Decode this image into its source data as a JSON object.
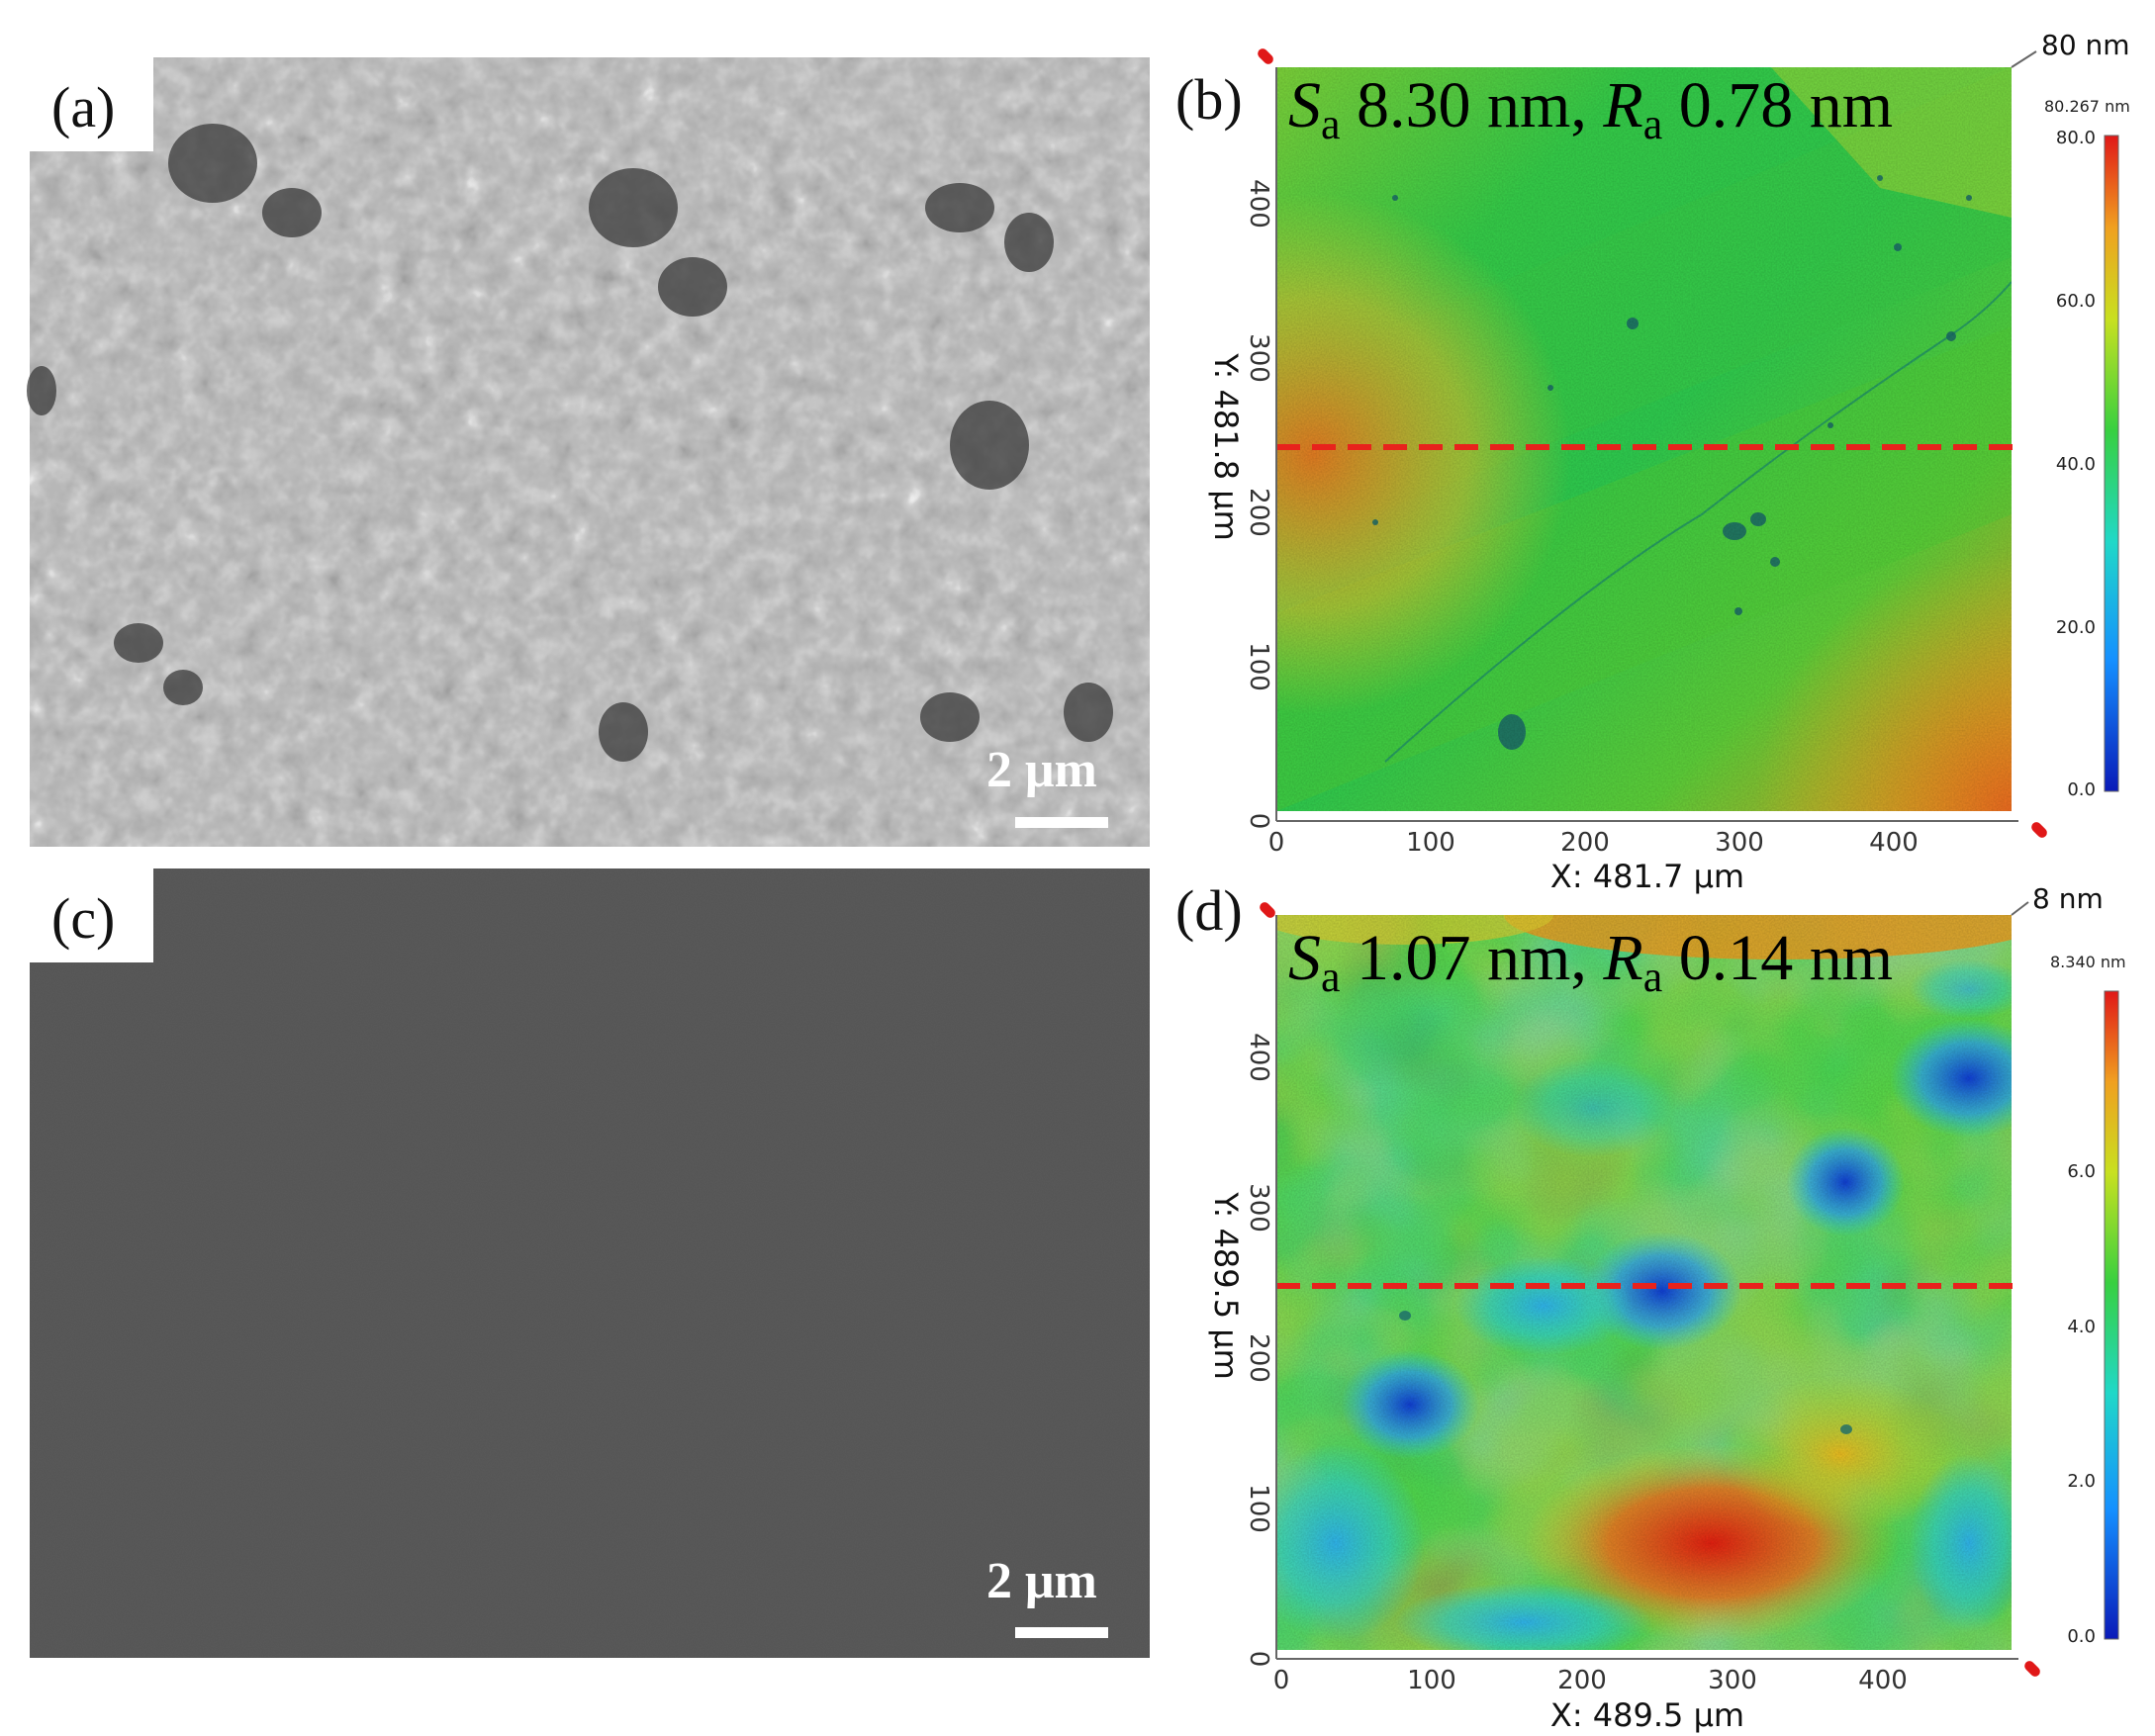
{
  "panels": {
    "a": {
      "label": "(a)",
      "scale_bar": "2 μm"
    },
    "b": {
      "label": "(b)",
      "roughness": {
        "s_symbol": "S",
        "r_symbol": "R",
        "sub": "a",
        "s_text": " 8.30 nm, ",
        "r_text": " 0.78 nm"
      },
      "z_label": "80 nm",
      "colorbar_max_label": "80.267 nm",
      "colorbar_ticks": [
        "80.0",
        "60.0",
        "40.0",
        "20.0",
        "0.0"
      ],
      "x_ticks": [
        "0",
        "100",
        "200",
        "300",
        "400"
      ],
      "y_ticks": [
        "0",
        "100",
        "200",
        "300",
        "400"
      ],
      "x_title": "X: 481.7 μm",
      "y_title": "Y: 481.8 μm",
      "profile_line_color": "#e8221c"
    },
    "c": {
      "label": "(c)",
      "scale_bar": "2 μm"
    },
    "d": {
      "label": "(d)",
      "roughness": {
        "s_symbol": "S",
        "r_symbol": "R",
        "sub": "a",
        "s_text": " 1.07 nm, ",
        "r_text": " 0.14 nm"
      },
      "z_label": "8 nm",
      "colorbar_max_label": "8.340 nm",
      "colorbar_ticks": [
        "6.0",
        "4.0",
        "2.0",
        "0.0"
      ],
      "x_ticks": [
        "0",
        "100",
        "200",
        "300",
        "400"
      ],
      "y_ticks": [
        "0",
        "100",
        "200",
        "300",
        "400"
      ],
      "x_title": "X: 489.5 μm",
      "y_title": "Y: 489.5 μm",
      "profile_line_color": "#e8221c"
    }
  },
  "colors": {
    "sem_rough_base": "#6e6e6e",
    "sem_smooth_base": "#545454",
    "height_low": "#1030d0",
    "height_mid": "#30d030",
    "height_high": "#e02010"
  }
}
